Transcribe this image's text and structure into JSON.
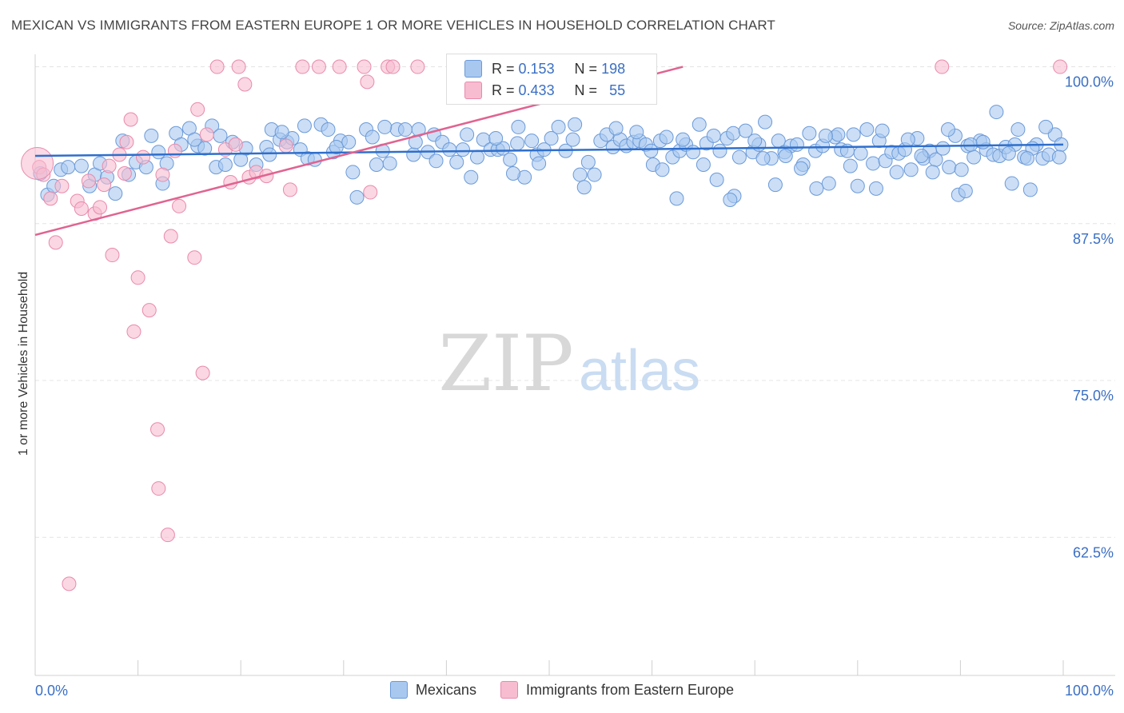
{
  "title": "MEXICAN VS IMMIGRANTS FROM EASTERN EUROPE 1 OR MORE VEHICLES IN HOUSEHOLD CORRELATION CHART",
  "source": "Source: ZipAtlas.com",
  "watermark": {
    "zip": "ZIP",
    "atlas": "atlas"
  },
  "colors": {
    "blue_fill": "#a9c8f0",
    "blue_stroke": "#6b9ad8",
    "blue_line": "#2f6fcc",
    "pink_fill": "#f7bcd0",
    "pink_stroke": "#e98aac",
    "pink_line": "#e06390",
    "tick_label": "#3a6fc4"
  },
  "legend": {
    "r_label": "R =",
    "n_label": "N =",
    "rows": [
      {
        "r": "0.153",
        "n": "198",
        "color": "#a9c8f0",
        "border": "#6b9ad8"
      },
      {
        "r": "0.433",
        "n": "55",
        "color": "#f7bcd0",
        "border": "#e98aac"
      }
    ]
  },
  "bottom_legend": [
    {
      "label": "Mexicans",
      "color": "#a9c8f0",
      "border": "#6b9ad8"
    },
    {
      "label": "Immigrants from Eastern Europe",
      "color": "#f7bcd0",
      "border": "#e98aac"
    }
  ],
  "chart_data": {
    "type": "scatter",
    "title": "MEXICAN VS IMMIGRANTS FROM EASTERN EUROPE 1 OR MORE VEHICLES IN HOUSEHOLD CORRELATION CHART",
    "xlabel": "",
    "ylabel": "1 or more Vehicles in Household",
    "xlim": [
      0,
      100
    ],
    "ylim": [
      51.5,
      101.5
    ],
    "x_tick_labels": [
      "0.0%",
      "100.0%"
    ],
    "y_ticks": [
      100.0,
      87.5,
      75.0,
      62.5
    ],
    "y_tick_labels": [
      "100.0%",
      "87.5%",
      "75.0%",
      "62.5%"
    ],
    "grid": true,
    "series": [
      {
        "name": "Mexicans",
        "r": 0.153,
        "n": 198,
        "trend": {
          "x": [
            0,
            100
          ],
          "y": [
            92.9,
            93.8
          ]
        },
        "points": [
          [
            0.5,
            91.5
          ],
          [
            1.2,
            89.8
          ],
          [
            1.8,
            90.5
          ],
          [
            2.5,
            91.8
          ],
          [
            3.2,
            92.0
          ],
          [
            4.5,
            92.1
          ],
          [
            5.3,
            90.5
          ],
          [
            5.8,
            91.4
          ],
          [
            6.3,
            92.3
          ],
          [
            7.0,
            91.2
          ],
          [
            7.8,
            89.9
          ],
          [
            8.5,
            94.1
          ],
          [
            9.1,
            91.4
          ],
          [
            9.8,
            92.4
          ],
          [
            10.8,
            92.0
          ],
          [
            11.3,
            94.5
          ],
          [
            12.0,
            93.2
          ],
          [
            12.8,
            92.3
          ],
          [
            13.7,
            94.7
          ],
          [
            14.2,
            93.8
          ],
          [
            15.0,
            95.1
          ],
          [
            15.8,
            93.7
          ],
          [
            16.5,
            93.5
          ],
          [
            17.2,
            95.3
          ],
          [
            17.6,
            92.0
          ],
          [
            18.5,
            92.2
          ],
          [
            19.2,
            94.0
          ],
          [
            20.5,
            93.5
          ],
          [
            21.5,
            92.2
          ],
          [
            22.5,
            93.6
          ],
          [
            23.0,
            95.0
          ],
          [
            23.8,
            94.2
          ],
          [
            24.5,
            94.0
          ],
          [
            25.0,
            94.3
          ],
          [
            25.8,
            93.4
          ],
          [
            26.5,
            92.7
          ],
          [
            27.2,
            92.6
          ],
          [
            27.8,
            95.4
          ],
          [
            28.5,
            95.0
          ],
          [
            29.0,
            93.2
          ],
          [
            29.7,
            94.1
          ],
          [
            30.5,
            94.0
          ],
          [
            30.9,
            91.6
          ],
          [
            31.3,
            89.6
          ],
          [
            32.2,
            95.0
          ],
          [
            32.8,
            94.4
          ],
          [
            33.8,
            93.3
          ],
          [
            34.5,
            92.3
          ],
          [
            35.2,
            95.0
          ],
          [
            36.0,
            95.0
          ],
          [
            36.8,
            93.0
          ],
          [
            37.3,
            95.0
          ],
          [
            38.2,
            93.2
          ],
          [
            38.8,
            94.6
          ],
          [
            39.6,
            94.0
          ],
          [
            40.3,
            93.4
          ],
          [
            41.0,
            92.4
          ],
          [
            41.6,
            93.4
          ],
          [
            42.4,
            91.2
          ],
          [
            43.0,
            92.8
          ],
          [
            43.6,
            94.2
          ],
          [
            44.3,
            93.4
          ],
          [
            45.0,
            93.4
          ],
          [
            45.5,
            93.5
          ],
          [
            46.2,
            92.6
          ],
          [
            46.9,
            93.9
          ],
          [
            47.6,
            91.2
          ],
          [
            48.3,
            94.1
          ],
          [
            48.8,
            93.0
          ],
          [
            49.5,
            93.4
          ],
          [
            50.2,
            94.3
          ],
          [
            50.9,
            95.2
          ],
          [
            51.6,
            93.3
          ],
          [
            52.3,
            94.2
          ],
          [
            53.0,
            91.4
          ],
          [
            53.8,
            92.4
          ],
          [
            54.4,
            91.4
          ],
          [
            55.0,
            94.1
          ],
          [
            55.6,
            94.6
          ],
          [
            56.2,
            93.6
          ],
          [
            56.9,
            94.2
          ],
          [
            57.5,
            93.7
          ],
          [
            58.2,
            94.0
          ],
          [
            58.8,
            94.1
          ],
          [
            59.4,
            93.8
          ],
          [
            60.1,
            92.2
          ],
          [
            60.8,
            94.1
          ],
          [
            61.4,
            94.4
          ],
          [
            62.0,
            92.8
          ],
          [
            62.7,
            93.3
          ],
          [
            63.3,
            93.8
          ],
          [
            64.0,
            93.2
          ],
          [
            64.6,
            95.4
          ],
          [
            65.3,
            93.9
          ],
          [
            66.0,
            94.5
          ],
          [
            66.6,
            93.3
          ],
          [
            67.3,
            94.3
          ],
          [
            67.9,
            94.7
          ],
          [
            68.5,
            92.8
          ],
          [
            69.1,
            94.9
          ],
          [
            69.8,
            93.2
          ],
          [
            70.4,
            93.8
          ],
          [
            71.0,
            95.6
          ],
          [
            71.6,
            92.7
          ],
          [
            72.3,
            94.1
          ],
          [
            72.9,
            93.2
          ],
          [
            73.5,
            93.7
          ],
          [
            74.1,
            93.8
          ],
          [
            74.7,
            92.2
          ],
          [
            75.3,
            94.7
          ],
          [
            75.9,
            93.3
          ],
          [
            76.6,
            93.7
          ],
          [
            77.2,
            90.7
          ],
          [
            77.8,
            94.4
          ],
          [
            78.4,
            93.4
          ],
          [
            79.0,
            93.3
          ],
          [
            79.6,
            94.6
          ],
          [
            80.3,
            93.1
          ],
          [
            80.9,
            95.0
          ],
          [
            81.5,
            92.3
          ],
          [
            82.1,
            94.1
          ],
          [
            82.7,
            92.5
          ],
          [
            83.3,
            93.2
          ],
          [
            84.0,
            93.1
          ],
          [
            84.6,
            93.4
          ],
          [
            85.2,
            91.8
          ],
          [
            85.8,
            94.3
          ],
          [
            86.4,
            92.7
          ],
          [
            87.0,
            93.3
          ],
          [
            87.6,
            92.6
          ],
          [
            88.3,
            93.5
          ],
          [
            88.9,
            92.0
          ],
          [
            89.5,
            94.5
          ],
          [
            90.1,
            91.8
          ],
          [
            90.7,
            93.7
          ],
          [
            91.3,
            92.8
          ],
          [
            91.9,
            94.1
          ],
          [
            92.5,
            93.4
          ],
          [
            93.2,
            93.0
          ],
          [
            93.8,
            92.9
          ],
          [
            94.4,
            93.6
          ],
          [
            95.0,
            90.7
          ],
          [
            95.6,
            95.0
          ],
          [
            96.2,
            92.8
          ],
          [
            96.8,
            90.2
          ],
          [
            97.4,
            93.8
          ],
          [
            98.0,
            92.7
          ],
          [
            98.6,
            93.0
          ],
          [
            99.2,
            94.6
          ],
          [
            99.8,
            93.8
          ],
          [
            15.5,
            94.2
          ],
          [
            22.8,
            93.0
          ],
          [
            26.2,
            95.3
          ],
          [
            34.0,
            95.2
          ],
          [
            37.0,
            94.0
          ],
          [
            44.8,
            94.3
          ],
          [
            47.0,
            95.2
          ],
          [
            52.5,
            95.4
          ],
          [
            58.5,
            94.8
          ],
          [
            61.0,
            91.8
          ],
          [
            63.0,
            94.2
          ],
          [
            66.3,
            91.0
          ],
          [
            68.0,
            89.7
          ],
          [
            70.8,
            92.7
          ],
          [
            72.0,
            90.6
          ],
          [
            74.5,
            91.9
          ],
          [
            76.0,
            90.3
          ],
          [
            78.1,
            94.6
          ],
          [
            80.0,
            90.5
          ],
          [
            81.8,
            90.3
          ],
          [
            83.8,
            91.6
          ],
          [
            86.2,
            92.9
          ],
          [
            89.8,
            89.8
          ],
          [
            91.0,
            93.8
          ],
          [
            93.5,
            96.4
          ],
          [
            95.3,
            93.8
          ],
          [
            97.0,
            93.5
          ],
          [
            98.3,
            95.2
          ],
          [
            99.6,
            92.8
          ],
          [
            12.4,
            90.7
          ],
          [
            18.0,
            94.5
          ],
          [
            20.0,
            92.6
          ],
          [
            24.0,
            94.8
          ],
          [
            29.3,
            93.6
          ],
          [
            33.2,
            92.2
          ],
          [
            39.0,
            92.5
          ],
          [
            42.0,
            94.6
          ],
          [
            46.5,
            91.5
          ],
          [
            49.0,
            92.3
          ],
          [
            53.4,
            90.4
          ],
          [
            56.5,
            95.1
          ],
          [
            59.9,
            93.3
          ],
          [
            62.4,
            89.5
          ],
          [
            65.0,
            92.2
          ],
          [
            67.6,
            89.4
          ],
          [
            70.0,
            94.1
          ],
          [
            73.0,
            92.9
          ],
          [
            76.9,
            94.5
          ],
          [
            79.3,
            92.1
          ],
          [
            82.4,
            94.9
          ],
          [
            84.9,
            94.2
          ],
          [
            87.3,
            91.6
          ],
          [
            88.8,
            95.0
          ],
          [
            90.5,
            90.1
          ],
          [
            92.2,
            94.0
          ],
          [
            94.7,
            93.1
          ],
          [
            96.5,
            92.7
          ]
        ]
      },
      {
        "name": "Immigrants from Eastern Europe",
        "r": 0.433,
        "n": 55,
        "trend": {
          "x": [
            0,
            63
          ],
          "y": [
            86.6,
            100.0
          ]
        },
        "points": [
          [
            0.4,
            92.0
          ],
          [
            0.8,
            91.4
          ],
          [
            1.5,
            89.5
          ],
          [
            2.0,
            86.0
          ],
          [
            2.6,
            90.5
          ],
          [
            3.3,
            58.8
          ],
          [
            4.1,
            89.3
          ],
          [
            4.5,
            88.7
          ],
          [
            5.2,
            90.9
          ],
          [
            5.8,
            88.3
          ],
          [
            6.3,
            88.8
          ],
          [
            6.7,
            90.6
          ],
          [
            7.2,
            92.1
          ],
          [
            7.5,
            85.0
          ],
          [
            8.2,
            93.0
          ],
          [
            8.7,
            91.5
          ],
          [
            8.9,
            94.0
          ],
          [
            9.3,
            95.8
          ],
          [
            9.6,
            78.9
          ],
          [
            10.0,
            83.2
          ],
          [
            10.5,
            92.8
          ],
          [
            11.1,
            80.6
          ],
          [
            11.9,
            71.1
          ],
          [
            12.0,
            66.4
          ],
          [
            12.4,
            91.4
          ],
          [
            12.9,
            62.7
          ],
          [
            13.2,
            86.5
          ],
          [
            13.6,
            93.3
          ],
          [
            14.0,
            88.9
          ],
          [
            15.5,
            84.8
          ],
          [
            15.8,
            96.6
          ],
          [
            16.3,
            75.6
          ],
          [
            16.7,
            94.6
          ],
          [
            17.7,
            100.0
          ],
          [
            18.5,
            93.4
          ],
          [
            19.0,
            90.8
          ],
          [
            19.5,
            93.8
          ],
          [
            19.8,
            100.0
          ],
          [
            20.4,
            98.6
          ],
          [
            20.8,
            91.2
          ],
          [
            21.5,
            91.6
          ],
          [
            22.5,
            91.3
          ],
          [
            24.4,
            93.7
          ],
          [
            24.8,
            90.2
          ],
          [
            26.0,
            100.0
          ],
          [
            27.6,
            100.0
          ],
          [
            29.6,
            100.0
          ],
          [
            32.0,
            100.0
          ],
          [
            32.3,
            98.8
          ],
          [
            32.6,
            90.0
          ],
          [
            34.3,
            100.0
          ],
          [
            34.8,
            100.0
          ],
          [
            37.2,
            100.0
          ],
          [
            88.2,
            100.0
          ],
          [
            99.7,
            100.0
          ]
        ]
      }
    ]
  }
}
